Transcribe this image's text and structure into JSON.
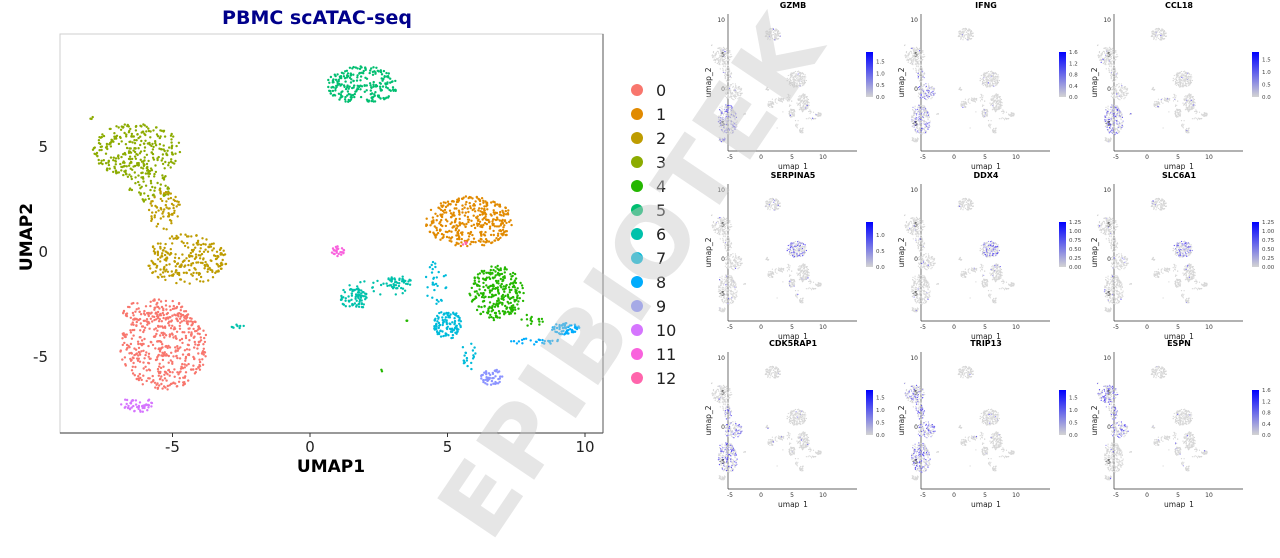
{
  "chart_data": [
    {
      "type": "scatter",
      "title": "PBMC scATAC-seq",
      "xlabel": "UMAP1",
      "ylabel": "UMAP2",
      "xlim": [
        -9,
        10.7
      ],
      "ylim": [
        -8.6,
        10.3
      ],
      "xticks": [
        -5,
        0,
        5,
        10
      ],
      "yticks": [
        -5,
        0,
        5
      ],
      "grid": false,
      "legend_position": "right",
      "title_color": "#00008B",
      "clusters": [
        {
          "name": "0",
          "color": "#F8766D",
          "centroid": [
            -5.3,
            -4.5
          ]
        },
        {
          "name": "1",
          "color": "#E18A00",
          "centroid": [
            5.8,
            1.4
          ]
        },
        {
          "name": "2",
          "color": "#BE9C00",
          "centroid": [
            -4.6,
            -0.3
          ]
        },
        {
          "name": "3",
          "color": "#8CAB00",
          "centroid": [
            -6.3,
            4.7
          ]
        },
        {
          "name": "4",
          "color": "#24B700",
          "centroid": [
            6.8,
            -2.0
          ]
        },
        {
          "name": "5",
          "color": "#00BE70",
          "centroid": [
            1.9,
            7.9
          ]
        },
        {
          "name": "6",
          "color": "#00C1AB",
          "centroid": [
            2.0,
            -2.0
          ]
        },
        {
          "name": "7",
          "color": "#00BBDA",
          "centroid": [
            5.0,
            -3.4
          ]
        },
        {
          "name": "8",
          "color": "#00ACFC",
          "centroid": [
            9.2,
            -3.8
          ]
        },
        {
          "name": "9",
          "color": "#8B93FF",
          "centroid": [
            6.6,
            -6.0
          ]
        },
        {
          "name": "10",
          "color": "#D575FE",
          "centroid": [
            -6.3,
            -7.3
          ]
        },
        {
          "name": "11",
          "color": "#F962DD",
          "centroid": [
            1.0,
            0.0
          ]
        },
        {
          "name": "12",
          "color": "#FF65AC",
          "centroid": [
            5.6,
            0.4
          ]
        }
      ]
    },
    {
      "type": "scatter",
      "subtype": "feature-plot-grid",
      "xlabel": "umap_1",
      "ylabel": "umap_2",
      "xticks": [
        -5,
        0,
        5,
        10
      ],
      "yticks": [
        -5,
        0,
        5,
        10
      ],
      "low_color": "#D3D3D3",
      "high_color": "#0000FF",
      "panels": [
        {
          "gene": "GZMB",
          "colorbar_ticks": [
            "0.0",
            "0.5",
            "1.0",
            "1.5"
          ],
          "max": 1.9,
          "enriched_clusters": [
            "0",
            "10"
          ]
        },
        {
          "gene": "IFNG",
          "colorbar_ticks": [
            "0.0",
            "0.4",
            "0.8",
            "1.2",
            "1.6"
          ],
          "max": 1.6,
          "enriched_clusters": [
            "0",
            "2"
          ]
        },
        {
          "gene": "CCL18",
          "colorbar_ticks": [
            "0.0",
            "0.5",
            "1.0",
            "1.5"
          ],
          "max": 1.8,
          "enriched_clusters": [
            "0"
          ]
        },
        {
          "gene": "SERPINA5",
          "colorbar_ticks": [
            "0.0",
            "0.5",
            "1.0"
          ],
          "max": 1.4,
          "enriched_clusters": [
            "1"
          ]
        },
        {
          "gene": "DDX4",
          "colorbar_ticks": [
            "0.00",
            "0.25",
            "0.50",
            "0.75",
            "1.00",
            "1.25"
          ],
          "max": 1.25,
          "enriched_clusters": [
            "1"
          ]
        },
        {
          "gene": "SLC6A1",
          "colorbar_ticks": [
            "0.00",
            "0.25",
            "0.50",
            "0.75",
            "1.00",
            "1.25"
          ],
          "max": 1.25,
          "enriched_clusters": [
            "1"
          ]
        },
        {
          "gene": "CDK5RAP1",
          "colorbar_ticks": [
            "0.0",
            "0.5",
            "1.0",
            "1.5"
          ],
          "max": 1.8,
          "enriched_clusters": [
            "0",
            "2"
          ]
        },
        {
          "gene": "TRIP13",
          "colorbar_ticks": [
            "0.0",
            "0.5",
            "1.0",
            "1.5"
          ],
          "max": 1.8,
          "enriched_clusters": [
            "0",
            "2",
            "3"
          ]
        },
        {
          "gene": "ESPN",
          "colorbar_ticks": [
            "0.0",
            "0.4",
            "0.8",
            "1.2",
            "1.6"
          ],
          "max": 1.6,
          "enriched_clusters": [
            "3",
            "2"
          ]
        }
      ]
    }
  ],
  "watermark": "EPIBIOTEK"
}
